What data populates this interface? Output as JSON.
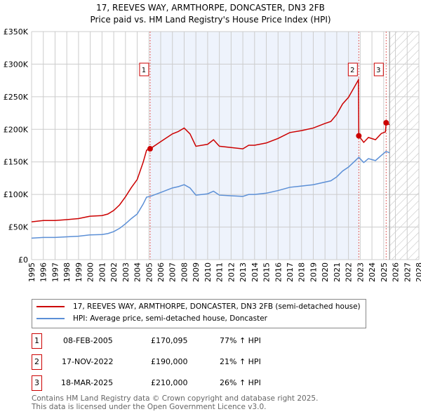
{
  "title": "17, REEVES WAY, ARMTHORPE, DONCASTER, DN3 2FB",
  "subtitle": "Price paid vs. HM Land Registry's House Price Index (HPI)",
  "legend": [
    {
      "label": "17, REEVES WAY, ARMTHORPE, DONCASTER, DN3 2FB (semi-detached house)",
      "color": "#cc0000"
    },
    {
      "label": "HPI: Average price, semi-detached house, Doncaster",
      "color": "#5b8fd6"
    }
  ],
  "sales": [
    {
      "num": "1",
      "date": "08-FEB-2005",
      "price": "£170,095",
      "hpi": "77% ↑ HPI"
    },
    {
      "num": "2",
      "date": "17-NOV-2022",
      "price": "£190,000",
      "hpi": "21% ↑ HPI"
    },
    {
      "num": "3",
      "date": "18-MAR-2025",
      "price": "£210,000",
      "hpi": "26% ↑ HPI"
    }
  ],
  "footer": [
    "Contains HM Land Registry data © Crown copyright and database right 2025.",
    "This data is licensed under the Open Government Licence v3.0."
  ],
  "chart_data": {
    "type": "line",
    "xlim": [
      1995,
      2028
    ],
    "ylim": [
      0,
      350000
    ],
    "xticks": [
      "1995",
      "1996",
      "1997",
      "1998",
      "1999",
      "2000",
      "2001",
      "2002",
      "2003",
      "2004",
      "2005",
      "2006",
      "2007",
      "2008",
      "2009",
      "2010",
      "2011",
      "2012",
      "2013",
      "2014",
      "2015",
      "2016",
      "2017",
      "2018",
      "2019",
      "2020",
      "2021",
      "2022",
      "2023",
      "2024",
      "2025",
      "2026",
      "2027",
      "2028"
    ],
    "yticks": [
      {
        "v": 0,
        "label": "£0"
      },
      {
        "v": 50000,
        "label": "£50K"
      },
      {
        "v": 100000,
        "label": "£100K"
      },
      {
        "v": 150000,
        "label": "£150K"
      },
      {
        "v": 200000,
        "label": "£200K"
      },
      {
        "v": 250000,
        "label": "£250K"
      },
      {
        "v": 300000,
        "label": "£300K"
      },
      {
        "v": 350000,
        "label": "£350K"
      }
    ],
    "shaded_range": [
      2005.1,
      2022.88
    ],
    "forecast_from": 2025.5,
    "series": [
      {
        "name": "price",
        "color": "#cc0000",
        "x": [
          1995,
          1996,
          1997,
          1998,
          1999,
          2000,
          2001,
          2001.5,
          2002,
          2002.5,
          2003,
          2003.5,
          2004,
          2004.5,
          2004.8,
          2005.1,
          2006,
          2007,
          2007.5,
          2008,
          2008.5,
          2009,
          2010,
          2010.5,
          2011,
          2012,
          2013,
          2013.5,
          2014,
          2015,
          2016,
          2017,
          2018,
          2019,
          2020,
          2020.5,
          2021,
          2021.5,
          2022,
          2022.85,
          2022.88,
          2023.3,
          2023.7,
          2024.3,
          2024.8,
          2025.15,
          2025.21,
          2025.5
        ],
        "y": [
          58000,
          60000,
          60000,
          61400,
          63000,
          66700,
          67600,
          70000,
          75500,
          84000,
          96500,
          110600,
          123000,
          149000,
          168000,
          170095,
          181000,
          193000,
          196600,
          202000,
          193000,
          174000,
          177000,
          184000,
          174000,
          172000,
          170000,
          175500,
          175500,
          179000,
          186000,
          195000,
          198000,
          202000,
          209000,
          212000,
          223000,
          239000,
          249000,
          276000,
          190000,
          180000,
          187500,
          184000,
          193600,
          196000,
          210000,
          207000
        ]
      },
      {
        "name": "hpi",
        "color": "#5b8fd6",
        "x": [
          1995,
          1996,
          1997,
          1998,
          1999,
          2000,
          2001,
          2001.5,
          2002,
          2002.5,
          2003,
          2003.5,
          2004,
          2004.5,
          2004.8,
          2005.1,
          2006,
          2007,
          2007.5,
          2008,
          2008.5,
          2009,
          2010,
          2010.5,
          2011,
          2012,
          2013,
          2013.5,
          2014,
          2015,
          2016,
          2017,
          2018,
          2019,
          2020,
          2020.5,
          2021,
          2021.5,
          2022,
          2022.88,
          2023.3,
          2023.7,
          2024.3,
          2024.8,
          2025.2,
          2025.5
        ],
        "y": [
          33000,
          34000,
          34000,
          35000,
          36000,
          38000,
          38500,
          40000,
          43000,
          48000,
          55000,
          63000,
          70000,
          85000,
          96000,
          97000,
          103000,
          110000,
          112000,
          115000,
          110000,
          99000,
          101000,
          105000,
          99000,
          98000,
          97000,
          100000,
          100000,
          102000,
          106000,
          111000,
          113000,
          115000,
          119000,
          121000,
          127000,
          136000,
          142000,
          157000,
          149000,
          155000,
          152000,
          160000,
          166000,
          164000
        ]
      }
    ],
    "markers": [
      {
        "label": "1",
        "x": 2005.1,
        "y": 170095
      },
      {
        "label": "2",
        "x": 2022.88,
        "y": 190000
      },
      {
        "label": "3",
        "x": 2025.21,
        "y": 210000
      }
    ]
  }
}
